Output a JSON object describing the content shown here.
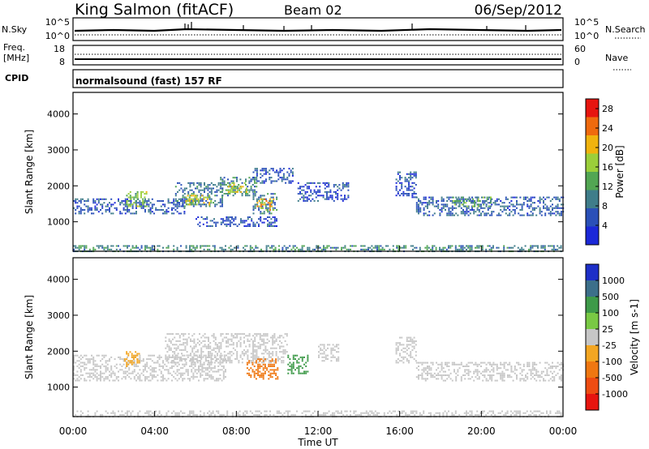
{
  "header": {
    "station": "King Salmon (fitACF)",
    "beam": "Beam 02",
    "date": "06/Sep/2012"
  },
  "summary_panels": {
    "nsky_label": "N.Sky",
    "nsky_ticks": [
      "10^5",
      "10^0"
    ],
    "nsearch_label": "N.Search",
    "nsearch_ticks": [
      "10^5",
      "10^0"
    ],
    "freq_label_line1": "Freq.",
    "freq_label_line2": "[MHz]",
    "freq_ticks": [
      "18",
      "8"
    ],
    "nave_label": "Nave",
    "nave_ticks": [
      "60",
      "0"
    ],
    "cpid_label": "CPID",
    "cpid_text": "normalsound (fast) 157 RF"
  },
  "chart_data": [
    {
      "type": "heatmap",
      "name": "Power",
      "ylabel": "Slant Range [km]",
      "xlabel": "Time UT",
      "xlim": [
        0,
        24
      ],
      "ylim": [
        180,
        4600
      ],
      "x_ticks": [
        "00:00",
        "04:00",
        "08:00",
        "12:00",
        "16:00",
        "20:00",
        "00:00"
      ],
      "y_ticks": [
        "1000",
        "2000",
        "3000",
        "4000"
      ],
      "colorbar": {
        "label": "Power [dB]",
        "ticks": [
          "4",
          "8",
          "12",
          "16",
          "20",
          "24",
          "28"
        ],
        "range": [
          0,
          30
        ],
        "colors": [
          "#1b28d8",
          "#2a50b8",
          "#3f7d8a",
          "#52a653",
          "#9bcf3a",
          "#f0b30e",
          "#ef6a0e",
          "#e7150f"
        ]
      },
      "regions": [
        {
          "t_start": 0.0,
          "t_end": 5.5,
          "range_start": 1250,
          "range_end": 1650,
          "power_db": 6
        },
        {
          "t_start": 2.6,
          "t_end": 3.6,
          "range_start": 1450,
          "range_end": 1850,
          "power_db": 15
        },
        {
          "t_start": 5.0,
          "t_end": 7.3,
          "range_start": 1450,
          "range_end": 2100,
          "power_db": 8
        },
        {
          "t_start": 5.5,
          "t_end": 6.8,
          "range_start": 1500,
          "range_end": 1750,
          "power_db": 18
        },
        {
          "t_start": 7.2,
          "t_end": 9.0,
          "range_start": 1750,
          "range_end": 2250,
          "power_db": 10
        },
        {
          "t_start": 7.5,
          "t_end": 8.5,
          "range_start": 1850,
          "range_end": 2100,
          "power_db": 17
        },
        {
          "t_start": 8.8,
          "t_end": 10.0,
          "range_start": 1250,
          "range_end": 1800,
          "power_db": 9
        },
        {
          "t_start": 9.0,
          "t_end": 9.8,
          "range_start": 1350,
          "range_end": 1650,
          "power_db": 20
        },
        {
          "t_start": 8.8,
          "t_end": 10.8,
          "range_start": 2100,
          "range_end": 2500,
          "power_db": 5
        },
        {
          "t_start": 6.0,
          "t_end": 10.0,
          "range_start": 900,
          "range_end": 1150,
          "power_db": 5
        },
        {
          "t_start": 11.0,
          "t_end": 13.5,
          "range_start": 1600,
          "range_end": 2100,
          "power_db": 5
        },
        {
          "t_start": 15.8,
          "t_end": 16.8,
          "range_start": 1700,
          "range_end": 2400,
          "power_db": 5
        },
        {
          "t_start": 16.8,
          "t_end": 24.0,
          "range_start": 1200,
          "range_end": 1700,
          "power_db": 7
        },
        {
          "t_start": 18.5,
          "t_end": 20.5,
          "range_start": 1450,
          "range_end": 1700,
          "power_db": 13
        },
        {
          "t_start": 0.0,
          "t_end": 24.0,
          "range_start": 180,
          "range_end": 350,
          "power_db": 10
        }
      ]
    },
    {
      "type": "heatmap",
      "name": "Velocity",
      "ylabel": "Slant Range [km]",
      "xlabel": "Time UT",
      "xlim": [
        0,
        24
      ],
      "ylim": [
        180,
        4600
      ],
      "x_ticks": [
        "00:00",
        "04:00",
        "08:00",
        "12:00",
        "16:00",
        "20:00",
        "00:00"
      ],
      "y_ticks": [
        "1000",
        "2000",
        "3000",
        "4000"
      ],
      "colorbar": {
        "label": "Velocity [m s-1]",
        "ticks": [
          "1000",
          "500",
          "100",
          "25",
          "-25",
          "-100",
          "-500",
          "-1000"
        ],
        "range": [
          -1000,
          1000
        ],
        "colors": [
          "#1d2fc8",
          "#3c6f8a",
          "#3e9a49",
          "#79c944",
          "#c6c6c6",
          "#f3a622",
          "#ef7711",
          "#ee4c12",
          "#e7150f"
        ]
      },
      "regions": [
        {
          "t_start": 0.0,
          "t_end": 7.5,
          "range_start": 1200,
          "range_end": 1900,
          "velocity": 0
        },
        {
          "t_start": 4.5,
          "t_end": 10.5,
          "range_start": 1700,
          "range_end": 2500,
          "velocity": 0
        },
        {
          "t_start": 2.5,
          "t_end": 3.2,
          "range_start": 1600,
          "range_end": 2000,
          "velocity": -300
        },
        {
          "t_start": 8.5,
          "t_end": 10.0,
          "range_start": 1250,
          "range_end": 1800,
          "velocity": -400
        },
        {
          "t_start": 10.5,
          "t_end": 11.5,
          "range_start": 1400,
          "range_end": 1900,
          "velocity": 400
        },
        {
          "t_start": 12.0,
          "t_end": 13.0,
          "range_start": 1750,
          "range_end": 2200,
          "velocity": 60
        },
        {
          "t_start": 15.8,
          "t_end": 16.8,
          "range_start": 1700,
          "range_end": 2400,
          "velocity": 0
        },
        {
          "t_start": 16.8,
          "t_end": 24.0,
          "range_start": 1200,
          "range_end": 1700,
          "velocity": 0
        },
        {
          "t_start": 0.0,
          "t_end": 24.0,
          "range_start": 180,
          "range_end": 350,
          "velocity": -80
        }
      ]
    }
  ]
}
